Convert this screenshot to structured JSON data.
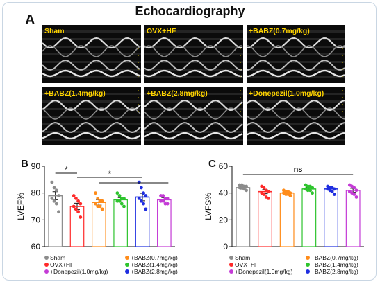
{
  "figure": {
    "title": "Echocardiography",
    "panel_a": "A",
    "panel_b": "B",
    "panel_c": "C"
  },
  "echo_panels": [
    {
      "label": "Sham"
    },
    {
      "label": "OVX+HF"
    },
    {
      "label": "+BABZ(0.7mg/kg)"
    },
    {
      "label": "+BABZ(1.4mg/kg)"
    },
    {
      "label": "+BABZ(2.8mg/kg)"
    },
    {
      "label": "+Donepezil(1.0mg/kg)"
    }
  ],
  "colors": {
    "Sham": "#8c8c8c",
    "OVX+HF": "#ff2a2a",
    "Donepezil": "#c43bd6",
    "BABZ0.7": "#ff8c1a",
    "BABZ1.4": "#2ec42e",
    "BABZ2.8": "#1f2ee0"
  },
  "chart_data": [
    {
      "type": "scatter",
      "ylabel": "LVEF%",
      "ylim": [
        60,
        90
      ],
      "yticks": [
        "60",
        "70",
        "80",
        "90"
      ],
      "groups": [
        "Sham",
        "OVX+HF",
        "+Donepezil(1.0mg/kg)",
        "+BABZ(0.7mg/kg)",
        "+BABZ(1.4mg/kg)",
        "+BABZ(2.8mg/kg)"
      ],
      "group_color_keys": [
        "Sham",
        "OVX+HF",
        "BABZ0.7",
        "BABZ1.4",
        "BABZ2.8",
        "Donepezil"
      ],
      "bar_order": [
        "Sham",
        "OVX+HF",
        "+BABZ(0.7mg/kg)",
        "+BABZ(1.4mg/kg)",
        "+BABZ(2.8mg/kg)",
        "+Donepezil(1.0mg/kg)"
      ],
      "means": [
        79,
        75,
        76.5,
        77.5,
        78.5,
        77.5
      ],
      "sem": [
        1.5,
        1.2,
        1.0,
        0.8,
        1.4,
        0.8
      ],
      "points": [
        [
          84,
          82,
          81,
          79,
          78,
          77,
          76,
          73
        ],
        [
          79,
          78,
          77,
          76,
          75,
          74,
          73,
          71
        ],
        [
          80,
          78,
          77,
          77,
          76,
          75,
          75,
          74
        ],
        [
          80,
          79,
          78,
          78,
          77,
          77,
          76,
          75
        ],
        [
          84,
          82,
          80,
          79,
          78,
          77,
          76,
          74
        ],
        [
          79,
          79,
          78,
          78,
          77,
          77,
          76,
          76
        ]
      ],
      "annotations": [
        "*",
        "*"
      ],
      "legend": [
        "Sham",
        "OVX+HF",
        "+Donepezil(1.0mg/kg)",
        "+BABZ(0.7mg/kg)",
        "+BABZ(1.4mg/kg)",
        "+BABZ(2.8mg/kg)"
      ]
    },
    {
      "type": "scatter",
      "ylabel": "LVFS%",
      "ylim": [
        0,
        60
      ],
      "yticks": [
        "0",
        "20",
        "40",
        "60"
      ],
      "bar_order": [
        "Sham",
        "OVX+HF",
        "+BABZ(0.7mg/kg)",
        "+BABZ(1.4mg/kg)",
        "+BABZ(2.8mg/kg)",
        "+Donepezil(1.0mg/kg)"
      ],
      "group_color_keys": [
        "Sham",
        "OVX+HF",
        "BABZ0.7",
        "BABZ1.4",
        "BABZ2.8",
        "Donepezil"
      ],
      "means": [
        44,
        41,
        40,
        43,
        43,
        42
      ],
      "sem": [
        1.0,
        1.5,
        1.0,
        1.2,
        1.0,
        1.5
      ],
      "points": [
        [
          46,
          46,
          45,
          45,
          44,
          44,
          43,
          42
        ],
        [
          45,
          44,
          42,
          41,
          40,
          39,
          37,
          36
        ],
        [
          42,
          41,
          41,
          40,
          40,
          39,
          39,
          38
        ],
        [
          46,
          45,
          45,
          44,
          43,
          42,
          42,
          40
        ],
        [
          45,
          44,
          44,
          43,
          43,
          42,
          41,
          39
        ],
        [
          46,
          45,
          44,
          42,
          41,
          40,
          39,
          37
        ]
      ],
      "annotations": [
        "ns"
      ],
      "legend": [
        "Sham",
        "OVX+HF",
        "+Donepezil(1.0mg/kg)",
        "+BABZ(0.7mg/kg)",
        "+BABZ(1.4mg/kg)",
        "+BABZ(2.8mg/kg)"
      ]
    }
  ]
}
